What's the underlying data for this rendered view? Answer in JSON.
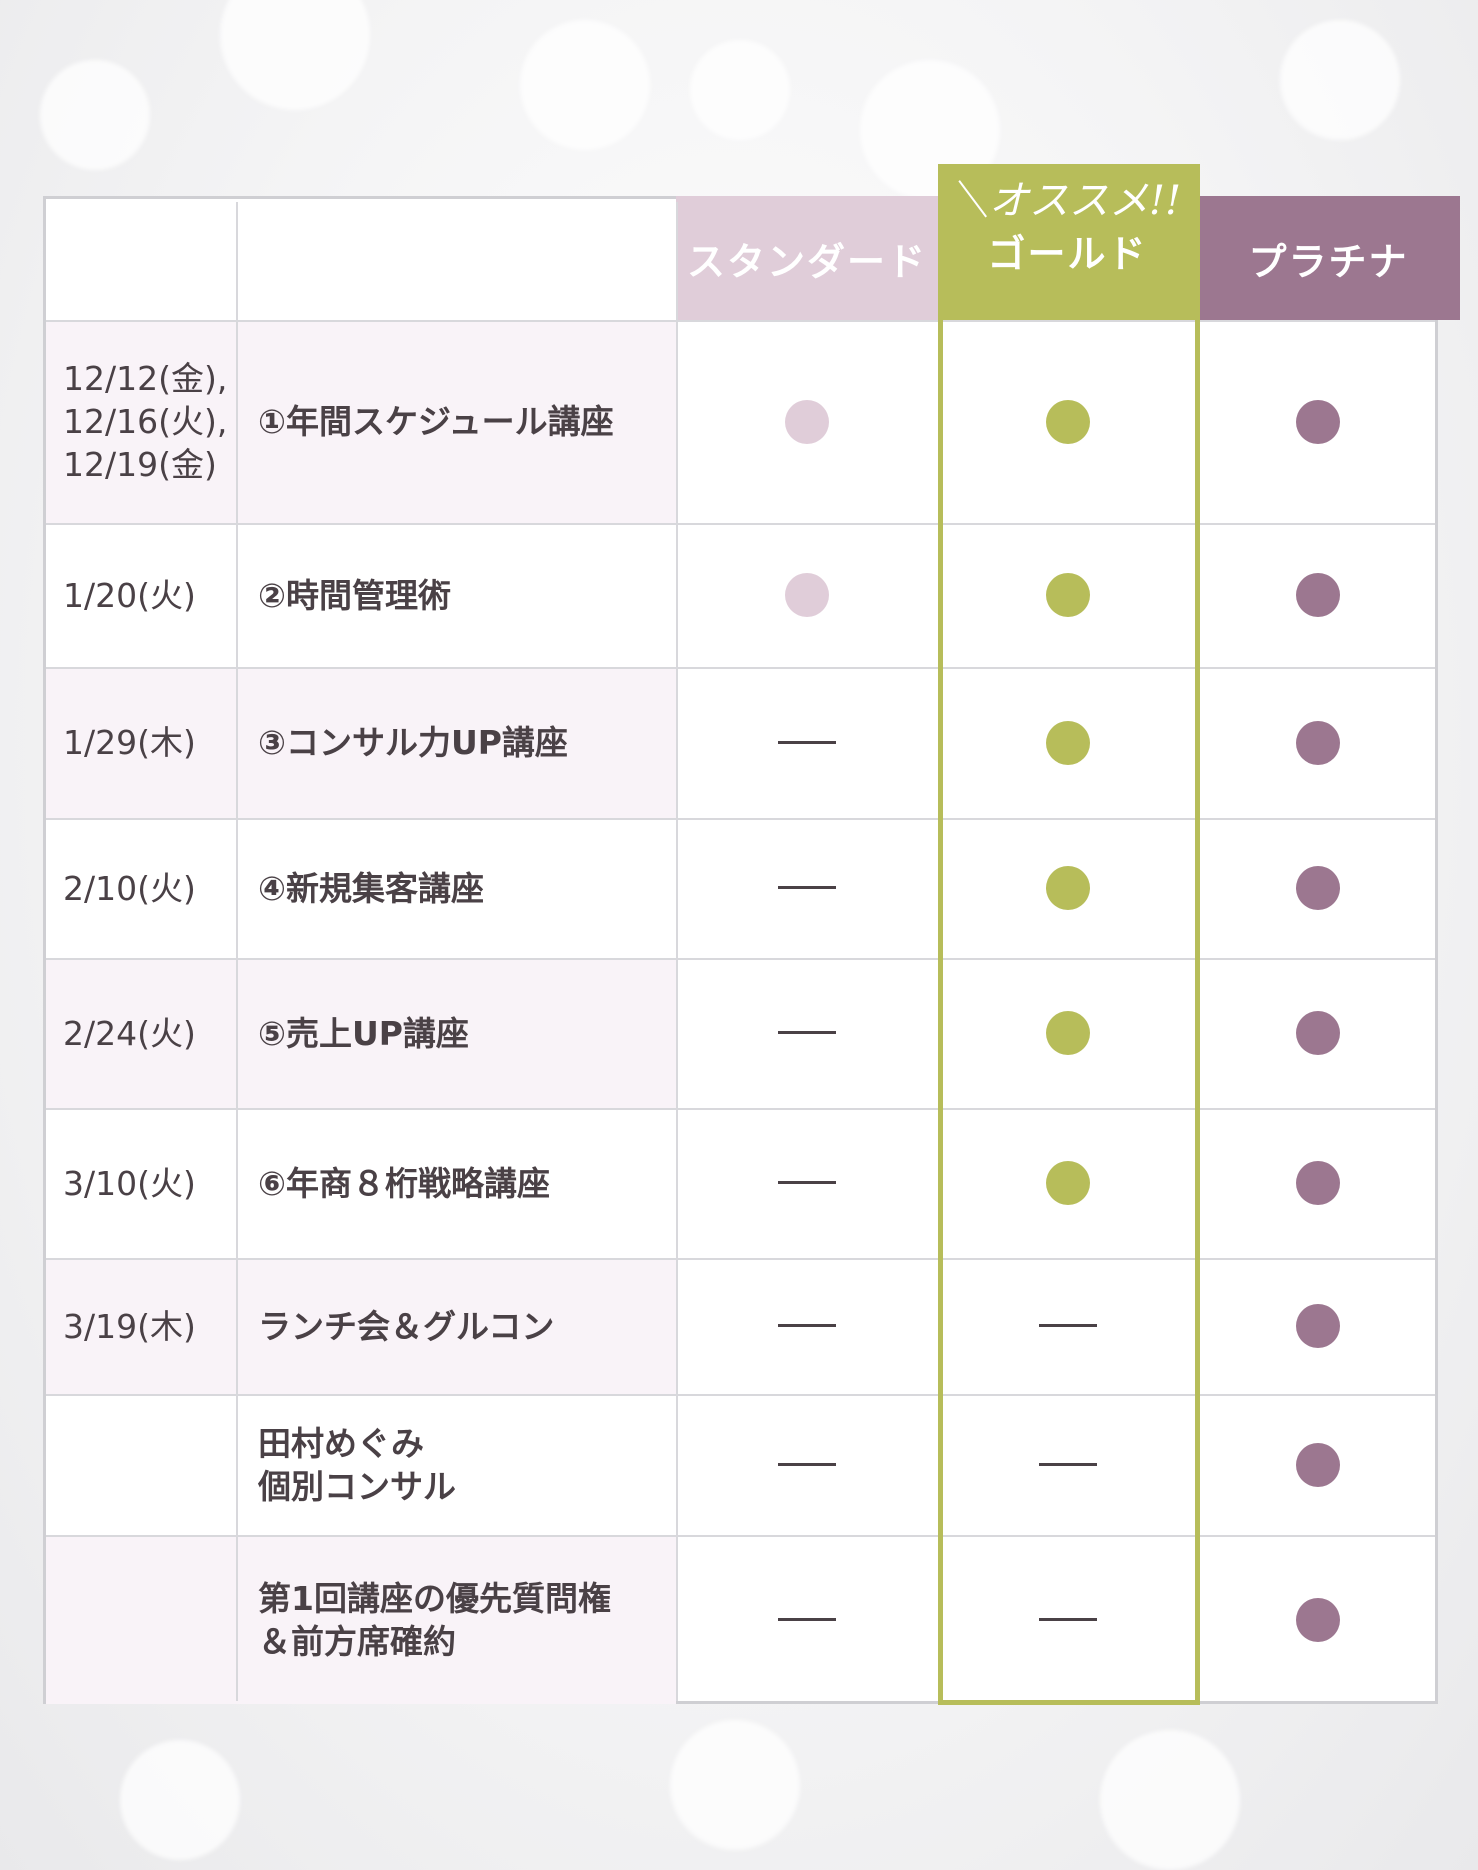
{
  "colors": {
    "standard": "#e0cdd9",
    "gold": "#b7bd5a",
    "platinum": "#9c7790",
    "dash": "#4a4146"
  },
  "header": {
    "recommend": "＼オススメ!!",
    "plans": [
      "スタンダード",
      "ゴールド",
      "プラチナ"
    ]
  },
  "rows": [
    {
      "date": "12/12(金),\n12/16(火),\n12/19(金)",
      "course": "①年間スケジュール講座",
      "standard": "dot",
      "gold": "dot",
      "platinum": "dot"
    },
    {
      "date": "1/20(火)",
      "course": "②時間管理術",
      "standard": "dot",
      "gold": "dot",
      "platinum": "dot"
    },
    {
      "date": "1/29(木)",
      "course": "③コンサル力UP講座",
      "standard": "dash",
      "gold": "dot",
      "platinum": "dot"
    },
    {
      "date": "2/10(火)",
      "course": "④新規集客講座",
      "standard": "dash",
      "gold": "dot",
      "platinum": "dot"
    },
    {
      "date": "2/24(火)",
      "course": "⑤売上UP講座",
      "standard": "dash",
      "gold": "dot",
      "platinum": "dot"
    },
    {
      "date": "3/10(火)",
      "course": "⑥年商８桁戦略講座",
      "standard": "dash",
      "gold": "dot",
      "platinum": "dot"
    },
    {
      "date": "3/19(木)",
      "course": "ランチ会＆グルコン",
      "standard": "dash",
      "gold": "dash",
      "platinum": "dot"
    },
    {
      "date": "",
      "course": "田村めぐみ\n個別コンサル",
      "standard": "dash",
      "gold": "dash",
      "platinum": "dot"
    },
    {
      "date": "",
      "course": "第1回講座の優先質問権\n＆前方席確約",
      "standard": "dash",
      "gold": "dash",
      "platinum": "dot"
    }
  ]
}
